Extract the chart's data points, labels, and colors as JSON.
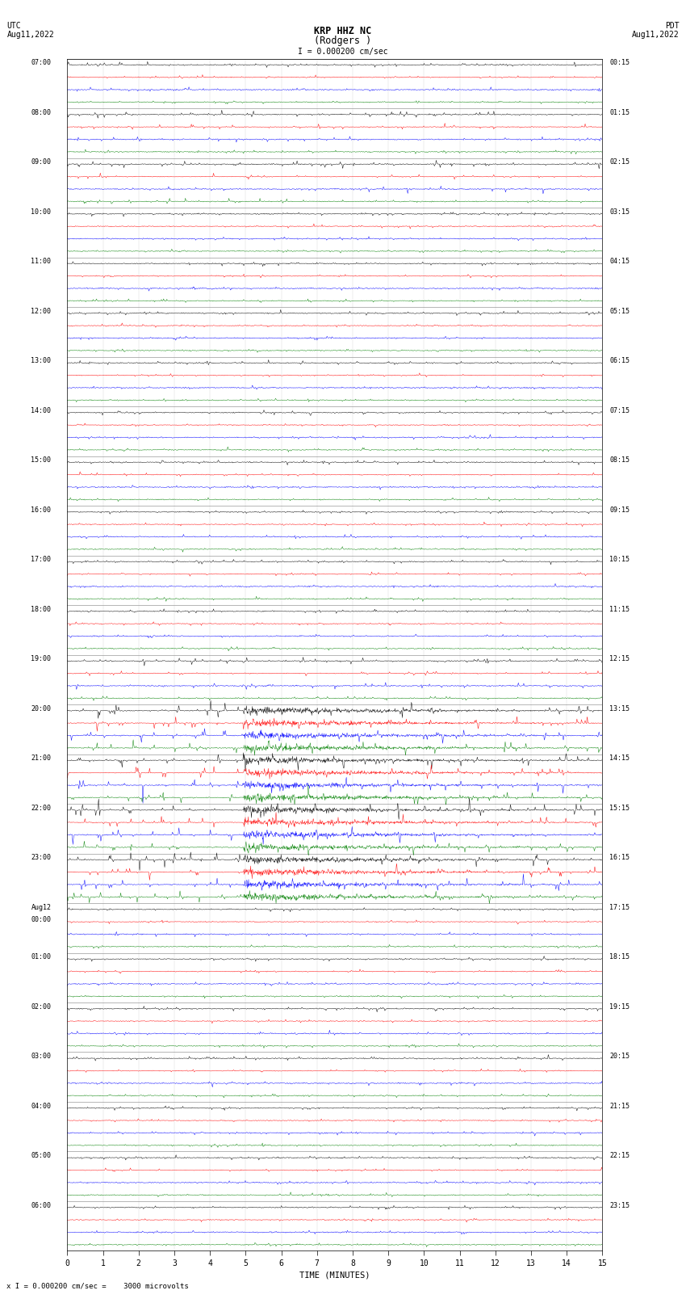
{
  "title_line1": "KRP HHZ NC",
  "title_line2": "(Rodgers )",
  "scale_text": "I = 0.000200 cm/sec",
  "utc_label": "UTC",
  "utc_date": "Aug11,2022",
  "pdt_label": "PDT",
  "pdt_date": "Aug11,2022",
  "bottom_note": "x I = 0.000200 cm/sec =    3000 microvolts",
  "xlabel": "TIME (MINUTES)",
  "bg_color": "#ffffff",
  "line_colors": [
    "black",
    "red",
    "blue",
    "green"
  ],
  "left_times": [
    "07:00",
    "08:00",
    "09:00",
    "10:00",
    "11:00",
    "12:00",
    "13:00",
    "14:00",
    "15:00",
    "16:00",
    "17:00",
    "18:00",
    "19:00",
    "20:00",
    "21:00",
    "22:00",
    "23:00",
    "Aug12",
    "01:00",
    "02:00",
    "03:00",
    "04:00",
    "05:00",
    "06:00"
  ],
  "left_times_sub": [
    "",
    "",
    "",
    "",
    "",
    "",
    "",
    "",
    "",
    "",
    "",
    "",
    "",
    "",
    "",
    "",
    "",
    "00:00",
    "",
    "",
    "",
    "",
    "",
    ""
  ],
  "right_times": [
    "00:15",
    "01:15",
    "02:15",
    "03:15",
    "04:15",
    "05:15",
    "06:15",
    "07:15",
    "08:15",
    "09:15",
    "10:15",
    "11:15",
    "12:15",
    "13:15",
    "14:15",
    "15:15",
    "16:15",
    "17:15",
    "18:15",
    "19:15",
    "20:15",
    "21:15",
    "22:15",
    "23:15"
  ],
  "n_rows": 24,
  "n_traces_per_row": 4,
  "x_tick_max": 15,
  "large_event_rows": [
    13,
    14,
    15,
    16
  ],
  "medium_event_rows": [
    1,
    2,
    12
  ],
  "noise_base": 0.08
}
